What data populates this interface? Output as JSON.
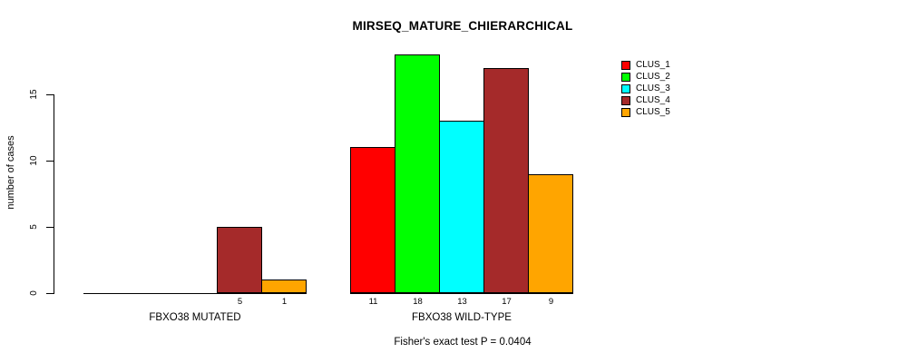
{
  "title": "MIRSEQ_MATURE_CHIERARCHICAL",
  "chart_data": {
    "type": "bar",
    "title": "MIRSEQ_MATURE_CHIERARCHICAL",
    "xlabel": "",
    "ylabel": "number of cases",
    "categories": [
      "FBXO38 MUTATED",
      "FBXO38 WILD-TYPE"
    ],
    "series": [
      {
        "name": "CLUS_1",
        "color": "#FF0000",
        "values": [
          0,
          11
        ]
      },
      {
        "name": "CLUS_2",
        "color": "#00FF00",
        "values": [
          0,
          18
        ]
      },
      {
        "name": "CLUS_3",
        "color": "#00FFFF",
        "values": [
          0,
          13
        ]
      },
      {
        "name": "CLUS_4",
        "color": "#A52A2A",
        "values": [
          5,
          17
        ]
      },
      {
        "name": "CLUS_5",
        "color": "#FFA500",
        "values": [
          1,
          9
        ]
      }
    ],
    "bar_value_labels_shown_for_nonzero_only": true,
    "yticks": [
      0,
      5,
      10,
      15
    ],
    "ylim": [
      0,
      18
    ],
    "grid": false,
    "legend_position": "top-right",
    "legend_entries": [
      "CLUS_1",
      "CLUS_2",
      "CLUS_3",
      "CLUS_4",
      "CLUS_5"
    ],
    "annotation": "Fisher's exact test P = 0.0404"
  },
  "colors": {
    "background": "#FFFFFF",
    "axis": "#000000",
    "text": "#000000"
  }
}
